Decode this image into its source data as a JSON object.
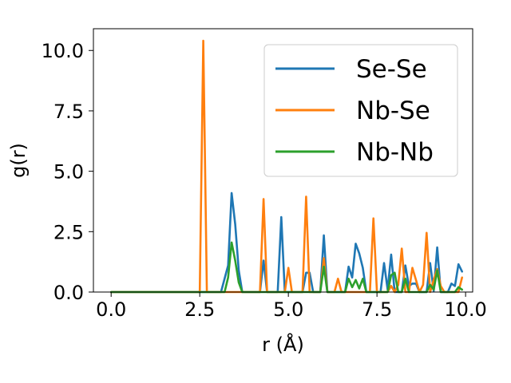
{
  "chart_data": {
    "type": "line",
    "title": "",
    "xlabel": "r (Å)",
    "ylabel": "g(r)",
    "xlim": [
      -0.5,
      10.2
    ],
    "ylim": [
      0,
      10.9
    ],
    "xticks": [
      "0.0",
      "2.5",
      "5.0",
      "7.5",
      "10.0"
    ],
    "yticks": [
      "0.0",
      "2.5",
      "5.0",
      "7.5",
      "10.0"
    ],
    "grid": false,
    "legend": "top-right",
    "series": [
      {
        "name": "Se-Se",
        "color": "#1f77b4",
        "points": [
          [
            0,
            0
          ],
          [
            3.1,
            0
          ],
          [
            3.3,
            1.1
          ],
          [
            3.4,
            4.1
          ],
          [
            3.5,
            2.8
          ],
          [
            3.6,
            0.9
          ],
          [
            3.7,
            0
          ],
          [
            4.2,
            0
          ],
          [
            4.3,
            1.3
          ],
          [
            4.4,
            0
          ],
          [
            4.7,
            0
          ],
          [
            4.8,
            3.1
          ],
          [
            4.9,
            0
          ],
          [
            5.4,
            0
          ],
          [
            5.5,
            0.8
          ],
          [
            5.6,
            0.8
          ],
          [
            5.7,
            0
          ],
          [
            5.9,
            0
          ],
          [
            6.0,
            2.35
          ],
          [
            6.1,
            0
          ],
          [
            6.6,
            0
          ],
          [
            6.7,
            1.05
          ],
          [
            6.8,
            0.6
          ],
          [
            6.9,
            2.0
          ],
          [
            7.0,
            1.6
          ],
          [
            7.1,
            1.0
          ],
          [
            7.2,
            0
          ],
          [
            7.6,
            0
          ],
          [
            7.7,
            1.2
          ],
          [
            7.8,
            0.1
          ],
          [
            7.9,
            1.55
          ],
          [
            8.0,
            0
          ],
          [
            8.2,
            0
          ],
          [
            8.3,
            1.1
          ],
          [
            8.4,
            0.25
          ],
          [
            8.5,
            0.35
          ],
          [
            8.6,
            0.35
          ],
          [
            8.7,
            0
          ],
          [
            8.9,
            0
          ],
          [
            9.0,
            1.2
          ],
          [
            9.1,
            0.05
          ],
          [
            9.2,
            1.85
          ],
          [
            9.3,
            0
          ],
          [
            9.5,
            0
          ],
          [
            9.6,
            0.35
          ],
          [
            9.7,
            0.25
          ],
          [
            9.8,
            1.15
          ],
          [
            9.9,
            0.85
          ]
        ]
      },
      {
        "name": "Nb-Se",
        "color": "#ff7f0e",
        "points": [
          [
            0,
            0
          ],
          [
            2.5,
            0
          ],
          [
            2.6,
            10.4
          ],
          [
            2.7,
            0
          ],
          [
            4.2,
            0
          ],
          [
            4.3,
            3.85
          ],
          [
            4.4,
            0
          ],
          [
            4.9,
            0
          ],
          [
            5.0,
            1.0
          ],
          [
            5.1,
            0
          ],
          [
            5.4,
            0
          ],
          [
            5.5,
            3.95
          ],
          [
            5.6,
            0
          ],
          [
            5.9,
            0
          ],
          [
            6.0,
            1.4
          ],
          [
            6.1,
            0
          ],
          [
            6.3,
            0
          ],
          [
            6.4,
            0.55
          ],
          [
            6.5,
            0
          ],
          [
            7.3,
            0
          ],
          [
            7.4,
            3.05
          ],
          [
            7.5,
            0
          ],
          [
            7.8,
            0
          ],
          [
            7.9,
            0.25
          ],
          [
            8.0,
            0
          ],
          [
            8.1,
            0.3
          ],
          [
            8.2,
            1.8
          ],
          [
            8.3,
            0
          ],
          [
            8.4,
            0
          ],
          [
            8.5,
            1.0
          ],
          [
            8.6,
            0.5
          ],
          [
            8.7,
            0
          ],
          [
            8.8,
            0.3
          ],
          [
            8.9,
            2.45
          ],
          [
            9.0,
            0
          ],
          [
            9.1,
            0.5
          ],
          [
            9.2,
            0.95
          ],
          [
            9.3,
            0.25
          ],
          [
            9.4,
            0
          ],
          [
            9.8,
            0
          ],
          [
            9.9,
            0.6
          ]
        ]
      },
      {
        "name": "Nb-Nb",
        "color": "#2ca02c",
        "points": [
          [
            0,
            0
          ],
          [
            3.2,
            0
          ],
          [
            3.3,
            0.6
          ],
          [
            3.4,
            2.05
          ],
          [
            3.5,
            1.3
          ],
          [
            3.6,
            0.4
          ],
          [
            3.7,
            0
          ],
          [
            5.9,
            0
          ],
          [
            6.0,
            1.05
          ],
          [
            6.1,
            0
          ],
          [
            6.6,
            0
          ],
          [
            6.7,
            0.55
          ],
          [
            6.8,
            0.2
          ],
          [
            6.9,
            0.5
          ],
          [
            7.0,
            0.15
          ],
          [
            7.1,
            0.55
          ],
          [
            7.2,
            0
          ],
          [
            7.8,
            0
          ],
          [
            7.9,
            0.7
          ],
          [
            8.0,
            0.8
          ],
          [
            8.1,
            0
          ],
          [
            8.2,
            0
          ],
          [
            8.3,
            0.55
          ],
          [
            8.4,
            0
          ],
          [
            8.9,
            0
          ],
          [
            9.0,
            0.3
          ],
          [
            9.1,
            0.1
          ],
          [
            9.2,
            0.9
          ],
          [
            9.3,
            0
          ],
          [
            9.7,
            0
          ],
          [
            9.8,
            0.2
          ],
          [
            9.9,
            0.1
          ]
        ]
      }
    ]
  }
}
